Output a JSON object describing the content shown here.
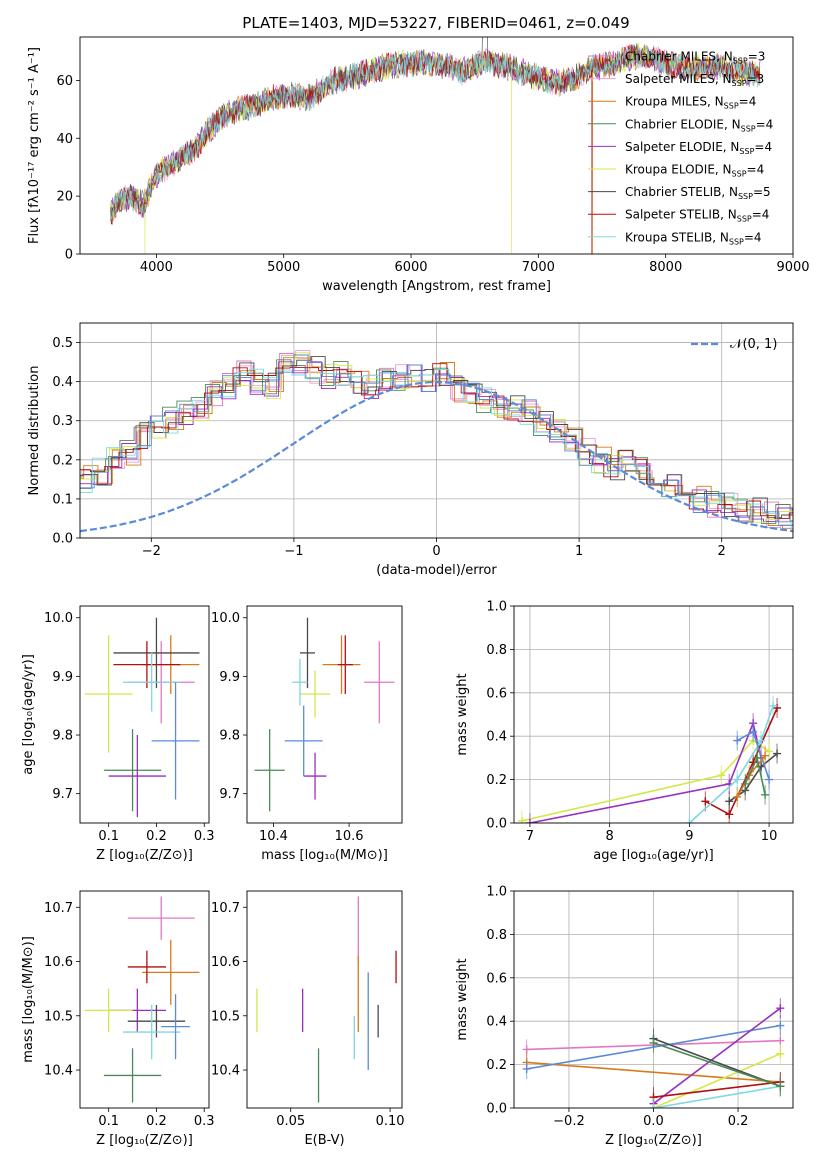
{
  "figure": {
    "title": "PLATE=1403, MJD=53227, FIBERID=0461, z=0.049"
  },
  "colors": {
    "Chabrier MILES": "#e377c2",
    "Salpeter MILES": "#e8a0d0",
    "Kroupa MILES": "#d87a1a",
    "Chabrier ELODIE": "#4a8a5a",
    "Salpeter ELODIE": "#9b2fbf",
    "Kroupa ELODIE": "#d4e84a",
    "Chabrier STELIB": "#4a4a4a",
    "Salpeter STELIB": "#b01010",
    "Kroupa STELIB": "#7fd7e0",
    "normal": "#5b8bd8"
  },
  "chart_data": [
    {
      "id": "spectrum",
      "type": "line",
      "xlabel": "wavelength [Angstrom, rest frame]",
      "ylabel": "Flux [fλ10⁻¹⁷ erg cm⁻² s⁻¹ A⁻¹]",
      "xlim": [
        3400,
        9000
      ],
      "ylim": [
        0,
        75
      ],
      "xticks": [
        "4000",
        "5000",
        "6000",
        "7000",
        "8000",
        "9000"
      ],
      "yticks": [
        "0",
        "20",
        "40",
        "60"
      ],
      "legend_position": "upper-right",
      "continuum": {
        "x": [
          3640,
          3700,
          3800,
          3900,
          4000,
          4100,
          4200,
          4300,
          4400,
          4500,
          4600,
          4800,
          5000,
          5200,
          5400,
          5600,
          5800,
          6000,
          6200,
          6400,
          6600,
          6800,
          7000,
          7200,
          7400,
          7600,
          7800,
          8000,
          8200,
          8400,
          8600,
          8750
        ],
        "y": [
          14,
          18,
          20,
          17,
          27,
          31,
          33,
          36,
          42,
          47,
          49,
          52,
          55,
          54,
          60,
          62,
          65,
          66,
          66,
          63,
          67,
          64,
          61,
          59,
          64,
          66,
          69,
          66,
          64,
          65,
          63,
          62
        ]
      },
      "series": [
        {
          "name": "Chabrier MILES",
          "nssp": "3"
        },
        {
          "name": "Salpeter MILES",
          "nssp": "3"
        },
        {
          "name": "Kroupa MILES",
          "nssp": "4"
        },
        {
          "name": "Chabrier ELODIE",
          "nssp": "4"
        },
        {
          "name": "Salpeter ELODIE",
          "nssp": "4"
        },
        {
          "name": "Kroupa ELODIE",
          "nssp": "4"
        },
        {
          "name": "Chabrier STELIB",
          "nssp": "5"
        },
        {
          "name": "Salpeter STELIB",
          "nssp": "4"
        },
        {
          "name": "Kroupa STELIB",
          "nssp": "4"
        }
      ]
    },
    {
      "id": "residuals",
      "type": "line",
      "xlabel": "(data-model)/error",
      "ylabel": "Normed distribution",
      "xlim": [
        -2.5,
        2.5
      ],
      "ylim": [
        0,
        0.55
      ],
      "xticks": [
        "−2",
        "−1",
        "0",
        "1",
        "2"
      ],
      "yticks": [
        "0.0",
        "0.1",
        "0.2",
        "0.3",
        "0.4",
        "0.5"
      ],
      "legend": "𝒩(0, 1)",
      "bin_width": 0.1,
      "profile": [
        0.03,
        0.025,
        0.03,
        0.035,
        0.05,
        0.06,
        0.07,
        0.09,
        0.1,
        0.11,
        0.13,
        0.15,
        0.17,
        0.2,
        0.22,
        0.26,
        0.28,
        0.3,
        0.32,
        0.33,
        0.37,
        0.39,
        0.42,
        0.4,
        0.39,
        0.44,
        0.45,
        0.43,
        0.41,
        0.42,
        0.4,
        0.39,
        0.4,
        0.41,
        0.42,
        0.4,
        0.42,
        0.38,
        0.37,
        0.35,
        0.34,
        0.33,
        0.32,
        0.29,
        0.27,
        0.25,
        0.22,
        0.2,
        0.18,
        0.19,
        0.18,
        0.16,
        0.14,
        0.12,
        0.1,
        0.085,
        0.09,
        0.075,
        0.07,
        0.06,
        0.055,
        0.05,
        0.045,
        0.03,
        0.03,
        0.025,
        0.02,
        0.02,
        0.015,
        0.015,
        0.01,
        0.01
      ]
    },
    {
      "id": "age-vs-Z",
      "type": "scatter",
      "xlabel": "Z [log₁₀(Z/Z⊙)]",
      "ylabel": "age  [log₁₀(age/yr)]",
      "xlim": [
        0.04,
        0.31
      ],
      "ylim": [
        9.65,
        10.02
      ],
      "xticks": [
        "0.1",
        "0.2",
        "0.3"
      ],
      "yticks": [
        "9.7",
        "9.8",
        "9.9",
        "10.0"
      ],
      "points": [
        {
          "series": "Chabrier MILES",
          "x": 0.21,
          "y": 9.89,
          "xerr": 0.07,
          "yerr": 0.07
        },
        {
          "series": "Kroupa MILES",
          "x": 0.23,
          "y": 9.92,
          "xerr": 0.06,
          "yerr": 0.05
        },
        {
          "series": "Chabrier ELODIE",
          "x": 0.15,
          "y": 9.74,
          "xerr": 0.06,
          "yerr": 0.07
        },
        {
          "series": "Salpeter ELODIE",
          "x": 0.16,
          "y": 9.73,
          "xerr": 0.06,
          "yerr": 0.07
        },
        {
          "series": "Kroupa ELODIE",
          "x": 0.1,
          "y": 9.87,
          "xerr": 0.05,
          "yerr": 0.1
        },
        {
          "series": "Chabrier STELIB",
          "x": 0.2,
          "y": 9.94,
          "xerr": 0.09,
          "yerr": 0.06
        },
        {
          "series": "Salpeter STELIB",
          "x": 0.18,
          "y": 9.92,
          "xerr": 0.07,
          "yerr": 0.04
        },
        {
          "series": "Kroupa STELIB",
          "x": 0.19,
          "y": 9.89,
          "xerr": 0.06,
          "yerr": 0.05
        },
        {
          "series": "normal",
          "x": 0.24,
          "y": 9.79,
          "xerr": 0.05,
          "yerr": 0.1
        }
      ]
    },
    {
      "id": "age-vs-mass",
      "type": "scatter",
      "xlabel": "mass [log₁₀(M/M⊙)]",
      "ylabel": "",
      "xlim": [
        10.33,
        10.74
      ],
      "ylim": [
        9.65,
        10.02
      ],
      "xticks": [
        "10.4",
        "10.6"
      ],
      "yticks": [
        "9.7",
        "9.8",
        "9.9",
        "10.0"
      ],
      "points": [
        {
          "series": "Chabrier MILES",
          "x": 10.68,
          "y": 9.89,
          "xerr": 0.04,
          "yerr": 0.07
        },
        {
          "series": "Kroupa MILES",
          "x": 10.58,
          "y": 9.92,
          "xerr": 0.05,
          "yerr": 0.05
        },
        {
          "series": "Chabrier ELODIE",
          "x": 10.39,
          "y": 9.74,
          "xerr": 0.04,
          "yerr": 0.07
        },
        {
          "series": "Salpeter ELODIE",
          "x": 10.51,
          "y": 9.73,
          "xerr": 0.03,
          "yerr": 0.04
        },
        {
          "series": "Kroupa ELODIE",
          "x": 10.51,
          "y": 9.87,
          "xerr": 0.04,
          "yerr": 0.04
        },
        {
          "series": "Chabrier STELIB",
          "x": 10.49,
          "y": 9.94,
          "xerr": 0.02,
          "yerr": 0.06
        },
        {
          "series": "Salpeter STELIB",
          "x": 10.59,
          "y": 9.92,
          "xerr": 0.02,
          "yerr": 0.05
        },
        {
          "series": "Kroupa STELIB",
          "x": 10.47,
          "y": 9.89,
          "xerr": 0.02,
          "yerr": 0.04
        },
        {
          "series": "normal",
          "x": 10.48,
          "y": 9.79,
          "xerr": 0.05,
          "yerr": 0.06
        }
      ]
    },
    {
      "id": "weight-vs-age",
      "type": "line",
      "xlabel": "age  [log₁₀(age/yr)]",
      "ylabel": "mass weight",
      "xlim": [
        6.8,
        10.3
      ],
      "ylim": [
        0,
        1.0
      ],
      "xticks": [
        "7",
        "8",
        "9",
        "10"
      ],
      "yticks": [
        "0.0",
        "0.2",
        "0.4",
        "0.6",
        "0.8",
        "1.0"
      ],
      "series": [
        {
          "series": "Kroupa ELODIE",
          "x": [
            6.9,
            9.4,
            9.8,
            10.0
          ],
          "y": [
            0.01,
            0.22,
            0.38,
            0.33
          ]
        },
        {
          "series": "Salpeter ELODIE",
          "x": [
            7.0,
            9.5,
            9.8,
            9.9
          ],
          "y": [
            0.0,
            0.18,
            0.46,
            0.3
          ]
        },
        {
          "series": "Salpeter STELIB",
          "x": [
            9.2,
            9.5,
            9.8,
            10.1
          ],
          "y": [
            0.1,
            0.04,
            0.28,
            0.53
          ]
        },
        {
          "series": "Chabrier STELIB",
          "x": [
            9.5,
            9.7,
            9.9,
            10.1
          ],
          "y": [
            0.1,
            0.15,
            0.26,
            0.32
          ]
        },
        {
          "series": "Kroupa STELIB",
          "x": [
            9.0,
            9.6,
            9.9,
            10.05
          ],
          "y": [
            0.0,
            0.2,
            0.38,
            0.54
          ]
        },
        {
          "series": "normal",
          "x": [
            9.6,
            9.8,
            10.0
          ],
          "y": [
            0.38,
            0.42,
            0.2
          ]
        },
        {
          "series": "Kroupa MILES",
          "x": [
            9.6,
            9.75,
            9.95
          ],
          "y": [
            0.12,
            0.22,
            0.31
          ]
        },
        {
          "series": "Chabrier ELODIE",
          "x": [
            9.7,
            9.85,
            9.95
          ],
          "y": [
            0.18,
            0.3,
            0.13
          ]
        }
      ]
    },
    {
      "id": "mass-vs-Z",
      "type": "scatter",
      "xlabel": "Z [log₁₀(Z/Z⊙)]",
      "ylabel": "mass [log₁₀(M/M⊙)]",
      "xlim": [
        0.04,
        0.31
      ],
      "ylim": [
        10.33,
        10.73
      ],
      "xticks": [
        "0.1",
        "0.2",
        "0.3"
      ],
      "yticks": [
        "10.4",
        "10.5",
        "10.6",
        "10.7"
      ],
      "points": [
        {
          "series": "Chabrier MILES",
          "x": 0.21,
          "y": 10.68,
          "xerr": 0.07,
          "yerr": 0.04
        },
        {
          "series": "Kroupa MILES",
          "x": 0.23,
          "y": 10.58,
          "xerr": 0.06,
          "yerr": 0.06
        },
        {
          "series": "Chabrier ELODIE",
          "x": 0.15,
          "y": 10.39,
          "xerr": 0.06,
          "yerr": 0.05
        },
        {
          "series": "Salpeter ELODIE",
          "x": 0.16,
          "y": 10.51,
          "xerr": 0.06,
          "yerr": 0.04
        },
        {
          "series": "Kroupa ELODIE",
          "x": 0.1,
          "y": 10.51,
          "xerr": 0.05,
          "yerr": 0.04
        },
        {
          "series": "Chabrier STELIB",
          "x": 0.2,
          "y": 10.49,
          "xerr": 0.06,
          "yerr": 0.03
        },
        {
          "series": "Salpeter STELIB",
          "x": 0.18,
          "y": 10.59,
          "xerr": 0.04,
          "yerr": 0.03
        },
        {
          "series": "Kroupa STELIB",
          "x": 0.19,
          "y": 10.47,
          "xerr": 0.06,
          "yerr": 0.05
        },
        {
          "series": "normal",
          "x": 0.24,
          "y": 10.48,
          "xerr": 0.03,
          "yerr": 0.06
        }
      ]
    },
    {
      "id": "mass-vs-EBV",
      "type": "scatter",
      "xlabel": "E(B-V)",
      "ylabel": "",
      "xlim": [
        0.028,
        0.106
      ],
      "ylim": [
        10.33,
        10.73
      ],
      "xticks": [
        "0.05",
        "0.10"
      ],
      "yticks": [
        "10.4",
        "10.5",
        "10.6",
        "10.7"
      ],
      "points": [
        {
          "series": "Chabrier MILES",
          "x": 0.084,
          "y": 10.66,
          "yerr": 0.06
        },
        {
          "series": "Kroupa MILES",
          "x": 0.084,
          "y": 10.54,
          "yerr": 0.07
        },
        {
          "series": "Chabrier ELODIE",
          "x": 0.064,
          "y": 10.39,
          "yerr": 0.05
        },
        {
          "series": "Salpeter ELODIE",
          "x": 0.056,
          "y": 10.51,
          "yerr": 0.04
        },
        {
          "series": "Kroupa ELODIE",
          "x": 0.033,
          "y": 10.51,
          "yerr": 0.04
        },
        {
          "series": "Chabrier STELIB",
          "x": 0.094,
          "y": 10.49,
          "yerr": 0.03
        },
        {
          "series": "Salpeter STELIB",
          "x": 0.103,
          "y": 10.59,
          "yerr": 0.03
        },
        {
          "series": "Kroupa STELIB",
          "x": 0.082,
          "y": 10.46,
          "yerr": 0.04
        },
        {
          "series": "normal",
          "x": 0.089,
          "y": 10.49,
          "yerr": 0.09
        }
      ]
    },
    {
      "id": "weight-vs-Z",
      "type": "line",
      "xlabel": "Z [log₁₀(Z/Z⊙)]",
      "ylabel": "mass weight",
      "xlim": [
        -0.33,
        0.33
      ],
      "ylim": [
        0,
        1.0
      ],
      "xticks": [
        "−0.2",
        "0.0",
        "0.2"
      ],
      "yticks": [
        "0.0",
        "0.2",
        "0.4",
        "0.6",
        "0.8",
        "1.0"
      ],
      "series": [
        {
          "series": "Chabrier MILES",
          "x": [
            -0.3,
            0.3
          ],
          "y": [
            0.27,
            0.31
          ]
        },
        {
          "series": "Kroupa MILES",
          "x": [
            -0.3,
            0.3
          ],
          "y": [
            0.21,
            0.12
          ]
        },
        {
          "series": "normal",
          "x": [
            -0.3,
            0.3
          ],
          "y": [
            0.18,
            0.38
          ]
        },
        {
          "series": "Salpeter ELODIE",
          "x": [
            0.0,
            0.3
          ],
          "y": [
            0.02,
            0.46
          ]
        },
        {
          "series": "Kroupa ELODIE",
          "x": [
            0.0,
            0.3
          ],
          "y": [
            0.0,
            0.25
          ]
        },
        {
          "series": "Chabrier STELIB",
          "x": [
            0.0,
            0.3
          ],
          "y": [
            0.32,
            0.1
          ]
        },
        {
          "series": "Salpeter STELIB",
          "x": [
            0.0,
            0.3
          ],
          "y": [
            0.05,
            0.12
          ]
        },
        {
          "series": "Kroupa STELIB",
          "x": [
            0.0,
            0.3
          ],
          "y": [
            0.0,
            0.1
          ]
        },
        {
          "series": "Chabrier ELODIE",
          "x": [
            0.0,
            0.3
          ],
          "y": [
            0.3,
            0.1
          ]
        }
      ]
    }
  ]
}
